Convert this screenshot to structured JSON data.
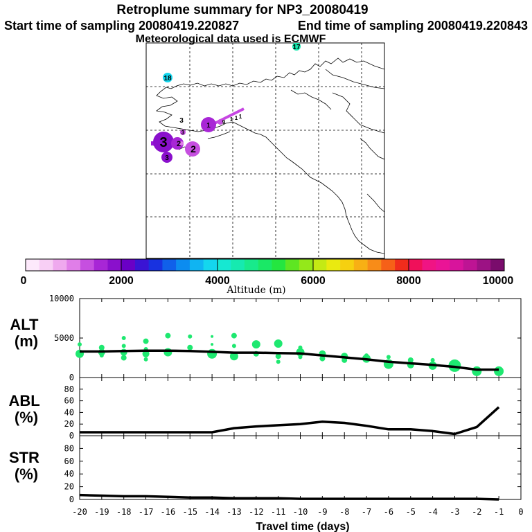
{
  "titles": {
    "main": "Retroplume summary for NP3_20080419",
    "start": "Start time of sampling 20080419.220827",
    "end": "End time of sampling 20080419.220843",
    "met": "Meteorological data used is ECMWF"
  },
  "map": {
    "numbers": [
      "18",
      "17",
      "3",
      "3",
      "3",
      "3",
      "1",
      "9",
      "1",
      "1",
      "1",
      "2",
      "2"
    ]
  },
  "colorbar": {
    "ticks": [
      "0",
      "2000",
      "4000",
      "6000",
      "8000",
      "10000"
    ],
    "label": "Altitude (m)",
    "colors": [
      "#fde9fb",
      "#f8cff5",
      "#efa9ee",
      "#e07ee8",
      "#c64fe0",
      "#a826d6",
      "#8a10cc",
      "#6a00c6",
      "#3a14d4",
      "#1832e0",
      "#1060ea",
      "#0c8cf0",
      "#10b4f2",
      "#14d6ee",
      "#16e8d2",
      "#16eab0",
      "#18ea8c",
      "#1ae866",
      "#24e640",
      "#5ee622",
      "#94e81a",
      "#c4ea14",
      "#eaea10",
      "#f6d010",
      "#f8b014",
      "#f88c18",
      "#f66018",
      "#f02c1c",
      "#f0105a",
      "#f01484",
      "#ea1496",
      "#d8149c",
      "#be1494",
      "#9c1284",
      "#7a0c6c"
    ]
  },
  "chart_data": [
    {
      "type": "line",
      "panel": "ALT",
      "ylabel": "ALT\n(m)",
      "ylabel_lines": [
        "ALT",
        "(m)"
      ],
      "ylim": [
        0,
        10000
      ],
      "yticks": [
        "10000",
        "5000",
        "0"
      ],
      "ytick_values": [
        10000,
        5000,
        0
      ],
      "x": [
        -20,
        -19,
        -18,
        -17,
        -16,
        -15,
        -14,
        -13,
        -12,
        -11,
        -10,
        -9,
        -8,
        -7,
        -6,
        -5,
        -4,
        -3,
        -2,
        -1
      ],
      "values": [
        3300,
        3300,
        3350,
        3400,
        3400,
        3350,
        3250,
        3150,
        3150,
        3100,
        3050,
        2800,
        2550,
        2300,
        2000,
        1800,
        1600,
        1350,
        1000,
        1000
      ],
      "scatter": [
        {
          "x": -20,
          "y": 4200,
          "s": 3
        },
        {
          "x": -20,
          "y": 3000,
          "s": 6
        },
        {
          "x": -20,
          "y": 2800,
          "s": 3
        },
        {
          "x": -19,
          "y": 3800,
          "s": 4
        },
        {
          "x": -19,
          "y": 3200,
          "s": 5
        },
        {
          "x": -19,
          "y": 2800,
          "s": 3
        },
        {
          "x": -18,
          "y": 5000,
          "s": 3
        },
        {
          "x": -18,
          "y": 4000,
          "s": 3
        },
        {
          "x": -18,
          "y": 3200,
          "s": 5
        },
        {
          "x": -18,
          "y": 2500,
          "s": 4
        },
        {
          "x": -17,
          "y": 4600,
          "s": 4
        },
        {
          "x": -17,
          "y": 3600,
          "s": 3
        },
        {
          "x": -17,
          "y": 3000,
          "s": 5
        },
        {
          "x": -17,
          "y": 2300,
          "s": 3
        },
        {
          "x": -16,
          "y": 5300,
          "s": 4
        },
        {
          "x": -16,
          "y": 3200,
          "s": 6
        },
        {
          "x": -15,
          "y": 5200,
          "s": 3
        },
        {
          "x": -15,
          "y": 3800,
          "s": 4
        },
        {
          "x": -14,
          "y": 5200,
          "s": 2
        },
        {
          "x": -14,
          "y": 4200,
          "s": 2
        },
        {
          "x": -14,
          "y": 3000,
          "s": 7
        },
        {
          "x": -13,
          "y": 5300,
          "s": 4
        },
        {
          "x": -13,
          "y": 4000,
          "s": 3
        },
        {
          "x": -13,
          "y": 2700,
          "s": 6
        },
        {
          "x": -12,
          "y": 4200,
          "s": 6
        },
        {
          "x": -12,
          "y": 3000,
          "s": 4
        },
        {
          "x": -11,
          "y": 4300,
          "s": 6
        },
        {
          "x": -11,
          "y": 2700,
          "s": 4
        },
        {
          "x": -11,
          "y": 2000,
          "s": 3
        },
        {
          "x": -10,
          "y": 3800,
          "s": 3
        },
        {
          "x": -10,
          "y": 3200,
          "s": 6
        },
        {
          "x": -10,
          "y": 2600,
          "s": 3
        },
        {
          "x": -9,
          "y": 3000,
          "s": 5
        },
        {
          "x": -9,
          "y": 2400,
          "s": 4
        },
        {
          "x": -8,
          "y": 2700,
          "s": 5
        },
        {
          "x": -8,
          "y": 2200,
          "s": 4
        },
        {
          "x": -7,
          "y": 2800,
          "s": 3
        },
        {
          "x": -7,
          "y": 2400,
          "s": 6
        },
        {
          "x": -6,
          "y": 2600,
          "s": 3
        },
        {
          "x": -6,
          "y": 1700,
          "s": 7
        },
        {
          "x": -5,
          "y": 2200,
          "s": 4
        },
        {
          "x": -5,
          "y": 1600,
          "s": 5
        },
        {
          "x": -4,
          "y": 2200,
          "s": 3
        },
        {
          "x": -4,
          "y": 1500,
          "s": 6
        },
        {
          "x": -3,
          "y": 1500,
          "s": 9
        },
        {
          "x": -3,
          "y": 1100,
          "s": 4
        },
        {
          "x": -2,
          "y": 800,
          "s": 7
        },
        {
          "x": -1,
          "y": 800,
          "s": 7
        }
      ]
    },
    {
      "type": "line",
      "panel": "ABL",
      "ylabel": "ABL\n(%)",
      "ylabel_lines": [
        "ABL",
        "(%)"
      ],
      "ylim": [
        0,
        100
      ],
      "yticks": [
        "80",
        "60",
        "40",
        "20",
        "0"
      ],
      "ytick_values": [
        80,
        60,
        40,
        20,
        0
      ],
      "x": [
        -20,
        -19,
        -18,
        -17,
        -16,
        -15,
        -14,
        -13,
        -12,
        -11,
        -10,
        -9,
        -8,
        -7,
        -6,
        -5,
        -4,
        -3,
        -2,
        -1
      ],
      "values": [
        6,
        6,
        6,
        6,
        6,
        6,
        6,
        13,
        16,
        18,
        20,
        24,
        22,
        17,
        11,
        11,
        8,
        3,
        15,
        49
      ]
    },
    {
      "type": "line",
      "panel": "STR",
      "ylabel": "STR\n(%)",
      "ylabel_lines": [
        "STR",
        "(%)"
      ],
      "ylim": [
        0,
        100
      ],
      "yticks": [
        "80",
        "60",
        "40",
        "20",
        "0"
      ],
      "ytick_values": [
        80,
        60,
        40,
        20,
        0
      ],
      "xlabel": "Travel time (days)",
      "xticks": [
        "-20",
        "-19",
        "-18",
        "-17",
        "-16",
        "-15",
        "-14",
        "-13",
        "-12",
        "-11",
        "-10",
        "-9",
        "-8",
        "-7",
        "-6",
        "-5",
        "-4",
        "-3",
        "-2",
        "-1",
        "0"
      ],
      "xtick_values": [
        -20,
        -19,
        -18,
        -17,
        -16,
        -15,
        -14,
        -13,
        -12,
        -11,
        -10,
        -9,
        -8,
        -7,
        -6,
        -5,
        -4,
        -3,
        -2,
        -1,
        0
      ],
      "x": [
        -20,
        -19,
        -18,
        -17,
        -16,
        -15,
        -14,
        -13,
        -12,
        -11,
        -10,
        -9,
        -8,
        -7,
        -6,
        -5,
        -4,
        -3,
        -2,
        -1
      ],
      "values": [
        7,
        6,
        5,
        5,
        4,
        3,
        3,
        2,
        2,
        2,
        1,
        1,
        1,
        1,
        1,
        1,
        1,
        1,
        1,
        0
      ]
    }
  ]
}
